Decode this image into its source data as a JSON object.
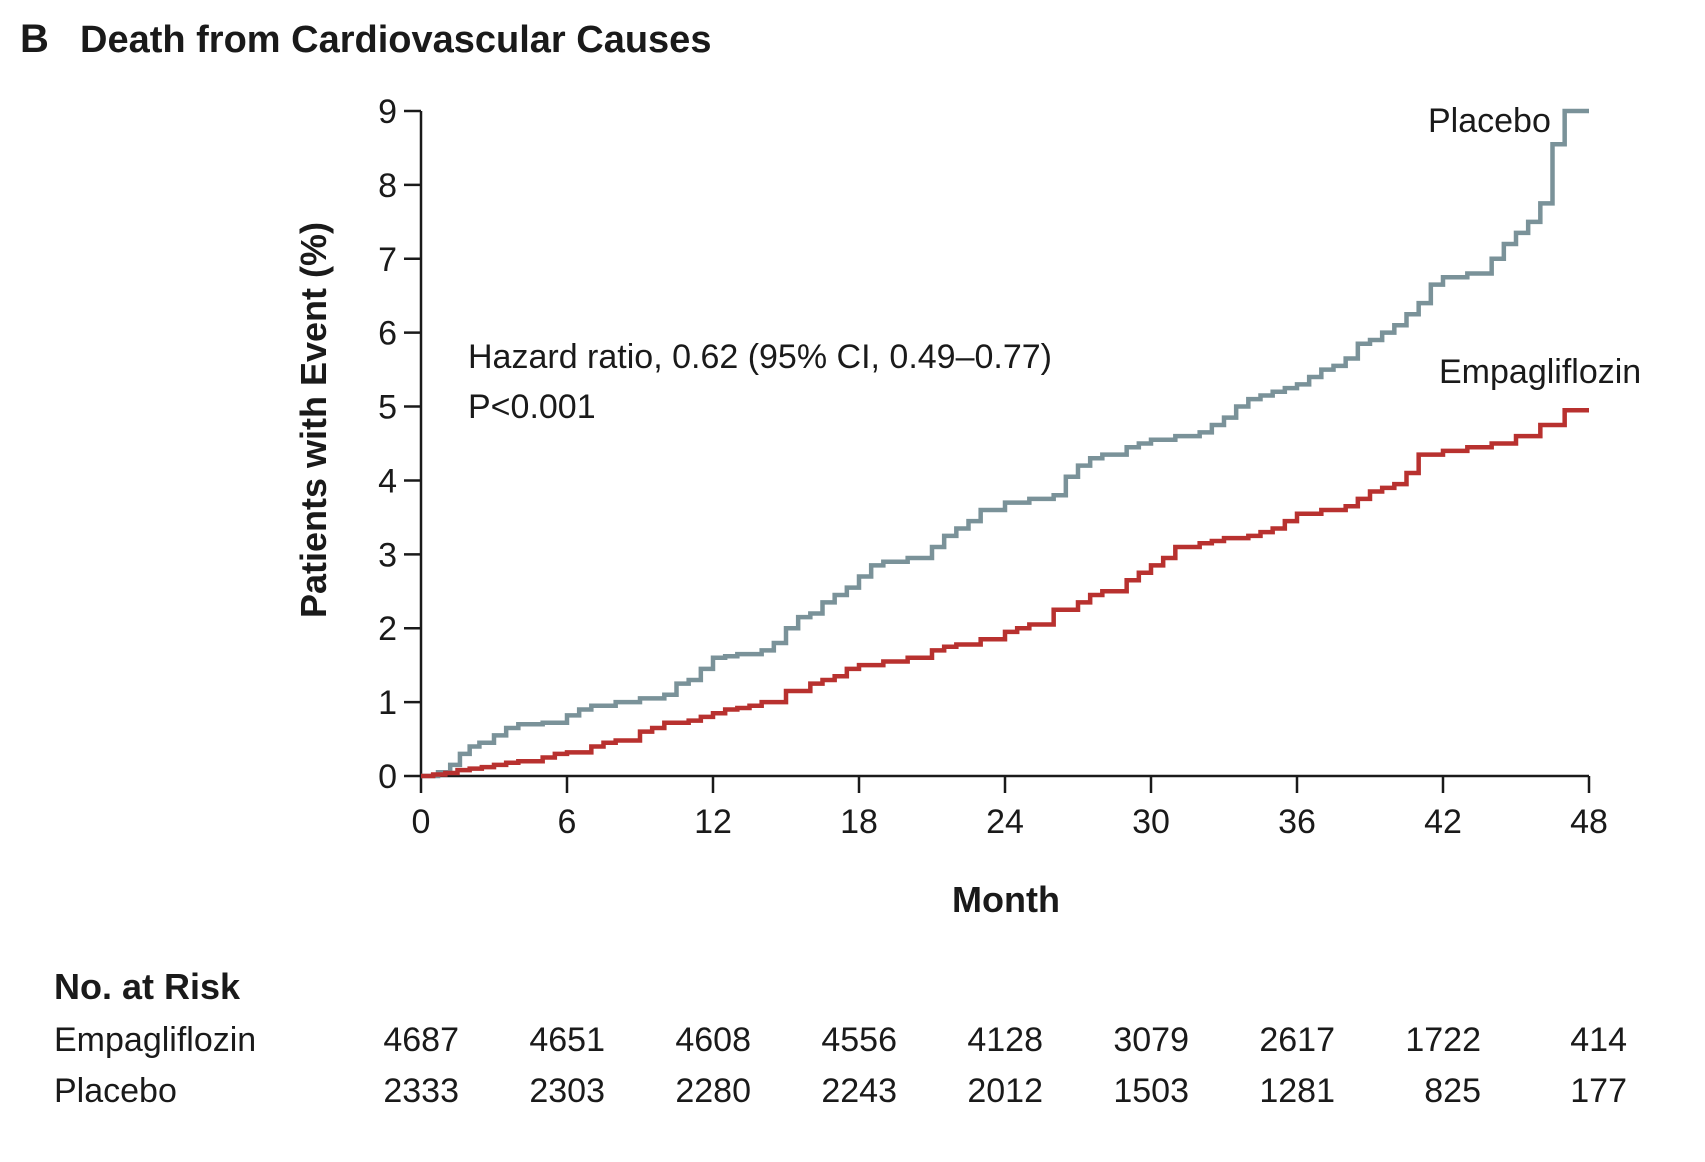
{
  "panel": {
    "letter": "B",
    "title": "Death from Cardiovascular Causes"
  },
  "chart_data": {
    "type": "line",
    "step": true,
    "xlabel": "Month",
    "ylabel": "Patients with Event (%)",
    "xlim": [
      0,
      48
    ],
    "ylim": [
      0,
      9
    ],
    "x_ticks": [
      0,
      6,
      12,
      18,
      24,
      30,
      36,
      42,
      48
    ],
    "y_ticks": [
      0,
      1,
      2,
      3,
      4,
      5,
      6,
      7,
      8,
      9
    ],
    "grid": false,
    "annotations": [
      "Hazard ratio, 0.62 (95% CI, 0.49–0.77)",
      "P<0.001"
    ],
    "series": [
      {
        "name": "Placebo",
        "color": "#7a9299",
        "x": [
          0,
          0.7,
          1.2,
          1.6,
          2.0,
          2.4,
          3.0,
          3.5,
          4.0,
          4.5,
          5.0,
          6.0,
          6.5,
          7.0,
          7.5,
          8.0,
          9.0,
          10.0,
          10.5,
          11.0,
          11.5,
          12.0,
          12.5,
          13.0,
          14.0,
          14.5,
          15.0,
          15.5,
          16.0,
          16.5,
          17.0,
          17.5,
          18.0,
          18.5,
          19.0,
          20.0,
          21.0,
          21.5,
          22.0,
          22.5,
          23.0,
          24.0,
          25.0,
          26.0,
          26.5,
          27.0,
          27.5,
          28.0,
          29.0,
          29.5,
          30.0,
          31.0,
          32.0,
          32.5,
          33.0,
          33.5,
          34.0,
          34.5,
          35.0,
          35.5,
          36.0,
          36.5,
          37.0,
          37.5,
          38.0,
          38.5,
          39.0,
          39.5,
          40.0,
          40.5,
          41.0,
          41.5,
          42.0,
          43.0,
          44.0,
          44.5,
          45.0,
          45.5,
          46.0,
          46.5,
          47.0,
          47.5
        ],
        "values": [
          0,
          0.05,
          0.15,
          0.3,
          0.4,
          0.45,
          0.55,
          0.65,
          0.7,
          0.7,
          0.72,
          0.82,
          0.9,
          0.95,
          0.95,
          1.0,
          1.05,
          1.1,
          1.25,
          1.3,
          1.45,
          1.6,
          1.62,
          1.65,
          1.7,
          1.8,
          2.0,
          2.15,
          2.2,
          2.35,
          2.45,
          2.55,
          2.7,
          2.85,
          2.9,
          2.95,
          3.1,
          3.25,
          3.35,
          3.45,
          3.6,
          3.7,
          3.75,
          3.8,
          4.05,
          4.2,
          4.3,
          4.35,
          4.45,
          4.5,
          4.55,
          4.6,
          4.65,
          4.75,
          4.85,
          5.0,
          5.1,
          5.15,
          5.2,
          5.25,
          5.3,
          5.4,
          5.5,
          5.55,
          5.65,
          5.85,
          5.9,
          6.0,
          6.1,
          6.25,
          6.4,
          6.65,
          6.75,
          6.8,
          7.0,
          7.2,
          7.35,
          7.5,
          7.75,
          8.55,
          9.0,
          9.0
        ]
      },
      {
        "name": "Empagliflozin",
        "color": "#b8312f",
        "x": [
          0,
          0.5,
          1.0,
          1.5,
          2.0,
          2.5,
          3.0,
          3.5,
          4.0,
          5.0,
          5.5,
          6.0,
          7.0,
          7.5,
          8.0,
          9.0,
          9.5,
          10.0,
          11.0,
          11.5,
          12.0,
          12.5,
          13.0,
          13.5,
          14.0,
          15.0,
          16.0,
          16.5,
          17.0,
          17.5,
          18.0,
          19.0,
          20.0,
          21.0,
          21.5,
          22.0,
          23.0,
          24.0,
          24.5,
          25.0,
          26.0,
          27.0,
          27.5,
          28.0,
          29.0,
          29.5,
          30.0,
          30.5,
          31.0,
          32.0,
          32.5,
          33.0,
          34.0,
          34.5,
          35.0,
          35.5,
          36.0,
          37.0,
          38.0,
          38.5,
          39.0,
          39.5,
          40.0,
          40.5,
          41.0,
          42.0,
          43.0,
          44.0,
          45.0,
          45.5,
          46.0,
          47.0,
          47.5
        ],
        "values": [
          0,
          0.02,
          0.04,
          0.08,
          0.1,
          0.12,
          0.15,
          0.18,
          0.2,
          0.25,
          0.3,
          0.32,
          0.4,
          0.45,
          0.48,
          0.6,
          0.65,
          0.72,
          0.75,
          0.8,
          0.85,
          0.9,
          0.92,
          0.95,
          1.0,
          1.15,
          1.25,
          1.3,
          1.35,
          1.45,
          1.5,
          1.55,
          1.6,
          1.7,
          1.75,
          1.78,
          1.85,
          1.95,
          2.0,
          2.05,
          2.25,
          2.35,
          2.45,
          2.5,
          2.65,
          2.75,
          2.85,
          2.95,
          3.1,
          3.15,
          3.18,
          3.22,
          3.25,
          3.3,
          3.35,
          3.45,
          3.55,
          3.6,
          3.65,
          3.75,
          3.85,
          3.9,
          3.95,
          4.1,
          4.35,
          4.4,
          4.45,
          4.5,
          4.6,
          4.6,
          4.75,
          4.95,
          4.95
        ]
      }
    ]
  },
  "risk_table": {
    "header": "No. at Risk",
    "rows": [
      {
        "label": "Empagliflozin",
        "values": [
          "4687",
          "4651",
          "4608",
          "4556",
          "4128",
          "3079",
          "2617",
          "1722",
          "414"
        ]
      },
      {
        "label": "Placebo",
        "values": [
          "2333",
          "2303",
          "2280",
          "2243",
          "2012",
          "1503",
          "1281",
          "825",
          "177"
        ]
      }
    ]
  }
}
